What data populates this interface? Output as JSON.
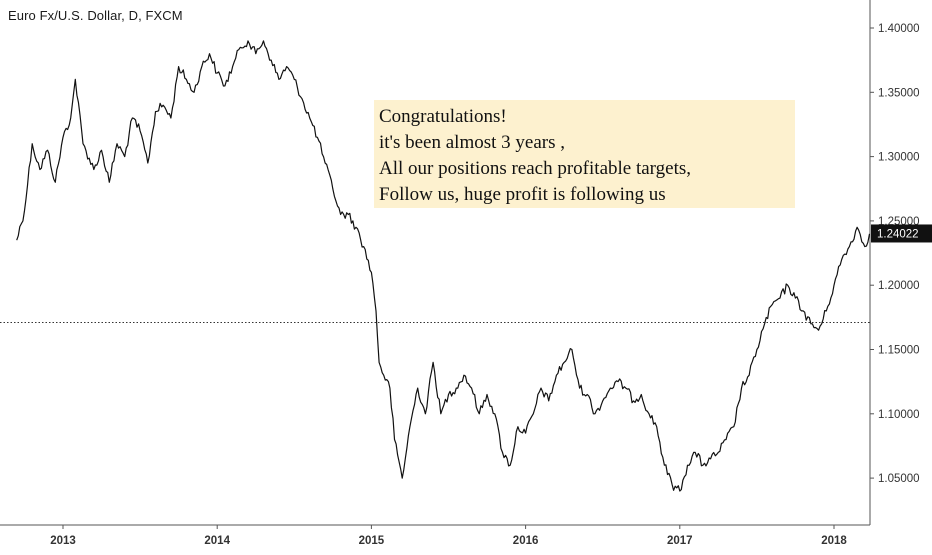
{
  "chart_data": {
    "type": "line",
    "title": "Euro Fx/U.S. Dollar, D, FXCM",
    "xlabel": "",
    "ylabel": "",
    "ylim": [
      1.025,
      1.41
    ],
    "xlim": [
      2012.7,
      2018.23
    ],
    "y_ticks": [
      "1.40000",
      "1.35000",
      "1.30000",
      "1.25000",
      "1.20000",
      "1.15000",
      "1.10000",
      "1.05000"
    ],
    "x_ticks": [
      "2013",
      "2014",
      "2015",
      "2016",
      "2017",
      "2018"
    ],
    "grid": false,
    "reference_line": {
      "value": 1.171,
      "style": "dotted"
    },
    "last_value": {
      "value": 1.24022,
      "label": "1.24022"
    },
    "series": [
      {
        "x": [
          2012.7,
          2012.75,
          2012.8,
          2012.85,
          2012.9,
          2012.95,
          2013.0,
          2013.05,
          2013.08,
          2013.13,
          2013.2,
          2013.25,
          2013.3,
          2013.35,
          2013.4,
          2013.45,
          2013.5,
          2013.55,
          2013.6,
          2013.65,
          2013.7,
          2013.75,
          2013.8,
          2013.85,
          2013.9,
          2013.95,
          2014.0,
          2014.05,
          2014.1,
          2014.15,
          2014.2,
          2014.25,
          2014.3,
          2014.35,
          2014.4,
          2014.45,
          2014.5,
          2014.55,
          2014.6,
          2014.65,
          2014.7,
          2014.75,
          2014.8,
          2014.85,
          2014.9,
          2014.95,
          2015.0,
          2015.03,
          2015.05,
          2015.08,
          2015.12,
          2015.15,
          2015.2,
          2015.25,
          2015.3,
          2015.35,
          2015.4,
          2015.45,
          2015.5,
          2015.55,
          2015.6,
          2015.65,
          2015.7,
          2015.75,
          2015.8,
          2015.85,
          2015.9,
          2015.95,
          2016.0,
          2016.05,
          2016.1,
          2016.15,
          2016.2,
          2016.25,
          2016.3,
          2016.35,
          2016.4,
          2016.45,
          2016.5,
          2016.55,
          2016.6,
          2016.65,
          2016.7,
          2016.75,
          2016.8,
          2016.85,
          2016.9,
          2016.95,
          2017.0,
          2017.05,
          2017.1,
          2017.15,
          2017.2,
          2017.25,
          2017.3,
          2017.35,
          2017.4,
          2017.45,
          2017.5,
          2017.55,
          2017.6,
          2017.65,
          2017.7,
          2017.75,
          2017.8,
          2017.85,
          2017.9,
          2017.95,
          2018.0,
          2018.05,
          2018.1,
          2018.15,
          2018.2,
          2018.23
        ],
        "values": [
          1.235,
          1.258,
          1.31,
          1.29,
          1.305,
          1.28,
          1.315,
          1.33,
          1.36,
          1.31,
          1.29,
          1.305,
          1.28,
          1.31,
          1.3,
          1.33,
          1.32,
          1.295,
          1.335,
          1.34,
          1.33,
          1.37,
          1.36,
          1.35,
          1.37,
          1.38,
          1.365,
          1.355,
          1.37,
          1.385,
          1.39,
          1.38,
          1.39,
          1.375,
          1.36,
          1.37,
          1.36,
          1.345,
          1.33,
          1.315,
          1.295,
          1.275,
          1.255,
          1.255,
          1.245,
          1.23,
          1.21,
          1.18,
          1.14,
          1.13,
          1.12,
          1.08,
          1.05,
          1.09,
          1.12,
          1.1,
          1.14,
          1.1,
          1.115,
          1.12,
          1.13,
          1.12,
          1.1,
          1.115,
          1.1,
          1.07,
          1.06,
          1.09,
          1.085,
          1.1,
          1.12,
          1.11,
          1.13,
          1.14,
          1.15,
          1.12,
          1.115,
          1.1,
          1.11,
          1.12,
          1.125,
          1.12,
          1.11,
          1.115,
          1.1,
          1.09,
          1.06,
          1.045,
          1.04,
          1.06,
          1.07,
          1.06,
          1.065,
          1.07,
          1.08,
          1.09,
          1.12,
          1.13,
          1.15,
          1.17,
          1.185,
          1.19,
          1.2,
          1.19,
          1.18,
          1.17,
          1.165,
          1.18,
          1.2,
          1.22,
          1.23,
          1.245,
          1.23,
          1.24
        ]
      }
    ]
  },
  "note": {
    "lines": [
      "Congratulations!",
      "it's been almost 3 years ,",
      "All our positions reach profitable targets,",
      "Follow us, huge profit is following us"
    ]
  },
  "colors": {
    "line": "#111111",
    "axis": "#555555",
    "note_bg": "#fdf1cf",
    "price_badge_bg": "#111111",
    "price_badge_text": "#ffffff"
  }
}
